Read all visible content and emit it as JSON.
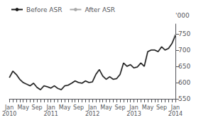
{
  "chart_data": {
    "type": "line",
    "ylabel": "'000",
    "categories": [
      "Jan\n2010",
      null,
      null,
      null,
      "May",
      null,
      null,
      null,
      "Sep",
      null,
      null,
      null,
      "Jan\n2011",
      null,
      null,
      null,
      "May",
      null,
      null,
      null,
      "Sep",
      null,
      null,
      null,
      "Jan\n2012",
      null,
      null,
      null,
      "May",
      null,
      null,
      null,
      "Sep",
      null,
      null,
      null,
      "Jan\n2013",
      null,
      null,
      null,
      "May",
      null,
      null,
      null,
      "Sep",
      null,
      null,
      null,
      "Jan\n2014"
    ],
    "series": [
      {
        "name": "Before ASR",
        "color": "#1a1a1a",
        "values": [
          615,
          635,
          625,
          610,
          600,
          595,
          590,
          598,
          585,
          578,
          590,
          587,
          583,
          590,
          582,
          578,
          590,
          592,
          598,
          605,
          600,
          598,
          605,
          600,
          602,
          625,
          640,
          620,
          610,
          618,
          610,
          612,
          625,
          660,
          650,
          655,
          645,
          648,
          660,
          650,
          695,
          700,
          700,
          695,
          710,
          700,
          705,
          720,
          745
        ]
      },
      {
        "name": "After ASR",
        "color": "#aaaaaa",
        "values": [
          615,
          635,
          625,
          610,
          600,
          595,
          590,
          598,
          585,
          578,
          590,
          587,
          583,
          590,
          582,
          578,
          590,
          592,
          598,
          605,
          600,
          598,
          605,
          600,
          602,
          625,
          640,
          620,
          610,
          618,
          610,
          612,
          625,
          660,
          650,
          655,
          645,
          648,
          660,
          650,
          695,
          700,
          700,
          695,
          710,
          700,
          705,
          720,
          748
        ]
      }
    ],
    "ylim": [
      550,
      780
    ],
    "yticks": [
      550,
      600,
      650,
      700,
      750
    ],
    "grid": false,
    "legend": "upper left"
  }
}
